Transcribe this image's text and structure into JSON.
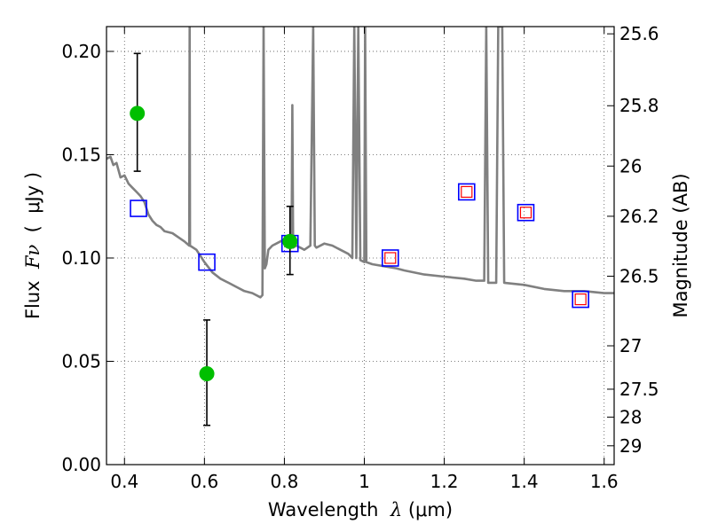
{
  "chart_data": {
    "type": "scatter",
    "xlabel": {
      "prefix": "Wavelength  ",
      "sym": "λ",
      "suffix": " (μm)"
    },
    "ylabel": {
      "prefix": "Flux  ",
      "sym": "Fν",
      "suffix": "  (  μJy )"
    },
    "y2label": "Magnitude (AB)",
    "xlim": [
      0.355,
      1.625
    ],
    "ylim": [
      0.0,
      0.212
    ],
    "grid": true,
    "x_ticks": [
      {
        "v": 0.4,
        "label": "0.4"
      },
      {
        "v": 0.6,
        "label": "0.6"
      },
      {
        "v": 0.8,
        "label": "0.8"
      },
      {
        "v": 1.0,
        "label": "1"
      },
      {
        "v": 1.2,
        "label": "1.2"
      },
      {
        "v": 1.4,
        "label": "1.4"
      },
      {
        "v": 1.6,
        "label": "1.6"
      }
    ],
    "y_ticks": [
      {
        "v": 0.0,
        "label": "0.00"
      },
      {
        "v": 0.05,
        "label": "0.05"
      },
      {
        "v": 0.1,
        "label": "0.10"
      },
      {
        "v": 0.15,
        "label": "0.15"
      },
      {
        "v": 0.2,
        "label": "0.20"
      }
    ],
    "y2_ticks": [
      {
        "flux": 0.2085,
        "label": "25.6"
      },
      {
        "flux": 0.1737,
        "label": "25.8"
      },
      {
        "flux": 0.1445,
        "label": "26"
      },
      {
        "flux": 0.1202,
        "label": "26.2"
      },
      {
        "flux": 0.0912,
        "label": "26.5"
      },
      {
        "flux": 0.0575,
        "label": "27"
      },
      {
        "flux": 0.0365,
        "label": "27.5"
      },
      {
        "flux": 0.023,
        "label": "28"
      },
      {
        "flux": 0.0091,
        "label": "29"
      }
    ],
    "colors": {
      "model": "#808080",
      "observed": "#00bf00",
      "model_box": "#0000ff",
      "model_box_inner": "#ff0000",
      "errorbar": "#000000",
      "grid": "#555555"
    },
    "model_sed": {
      "name": "model",
      "points": [
        [
          0.355,
          0.148
        ],
        [
          0.365,
          0.149
        ],
        [
          0.372,
          0.145
        ],
        [
          0.38,
          0.146
        ],
        [
          0.39,
          0.139
        ],
        [
          0.4,
          0.14
        ],
        [
          0.41,
          0.136
        ],
        [
          0.42,
          0.134
        ],
        [
          0.43,
          0.132
        ],
        [
          0.44,
          0.13
        ],
        [
          0.45,
          0.127
        ],
        [
          0.46,
          0.121
        ],
        [
          0.47,
          0.118
        ],
        [
          0.48,
          0.116
        ],
        [
          0.49,
          0.115
        ],
        [
          0.5,
          0.113
        ],
        [
          0.52,
          0.112
        ],
        [
          0.535,
          0.11
        ],
        [
          0.55,
          0.108
        ],
        [
          0.562,
          0.106
        ],
        [
          0.563,
          0.212
        ],
        [
          0.564,
          0.106
        ],
        [
          0.58,
          0.104
        ],
        [
          0.6,
          0.098
        ],
        [
          0.62,
          0.093
        ],
        [
          0.64,
          0.09
        ],
        [
          0.66,
          0.088
        ],
        [
          0.68,
          0.086
        ],
        [
          0.7,
          0.084
        ],
        [
          0.72,
          0.083
        ],
        [
          0.74,
          0.081
        ],
        [
          0.745,
          0.082
        ],
        [
          0.748,
          0.212
        ],
        [
          0.751,
          0.095
        ],
        [
          0.755,
          0.097
        ],
        [
          0.76,
          0.104
        ],
        [
          0.77,
          0.106
        ],
        [
          0.78,
          0.107
        ],
        [
          0.79,
          0.108
        ],
        [
          0.8,
          0.109
        ],
        [
          0.805,
          0.107
        ],
        [
          0.812,
          0.108
        ],
        [
          0.815,
          0.105
        ],
        [
          0.818,
          0.105
        ],
        [
          0.82,
          0.174
        ],
        [
          0.822,
          0.105
        ],
        [
          0.83,
          0.106
        ],
        [
          0.84,
          0.105
        ],
        [
          0.85,
          0.104
        ],
        [
          0.865,
          0.106
        ],
        [
          0.872,
          0.212
        ],
        [
          0.876,
          0.106
        ],
        [
          0.88,
          0.105
        ],
        [
          0.9,
          0.107
        ],
        [
          0.92,
          0.106
        ],
        [
          0.94,
          0.104
        ],
        [
          0.96,
          0.102
        ],
        [
          0.97,
          0.1
        ],
        [
          0.975,
          0.212
        ],
        [
          0.98,
          0.1
        ],
        [
          0.985,
          0.212
        ],
        [
          0.99,
          0.099
        ],
        [
          1.0,
          0.098
        ],
        [
          1.002,
          0.212
        ],
        [
          1.005,
          0.098
        ],
        [
          1.02,
          0.097
        ],
        [
          1.05,
          0.096
        ],
        [
          1.08,
          0.095
        ],
        [
          1.1,
          0.094
        ],
        [
          1.15,
          0.092
        ],
        [
          1.2,
          0.091
        ],
        [
          1.25,
          0.09
        ],
        [
          1.28,
          0.089
        ],
        [
          1.3,
          0.089
        ],
        [
          1.305,
          0.212
        ],
        [
          1.31,
          0.088
        ],
        [
          1.33,
          0.088
        ],
        [
          1.335,
          0.212
        ],
        [
          1.345,
          0.212
        ],
        [
          1.35,
          0.088
        ],
        [
          1.4,
          0.087
        ],
        [
          1.45,
          0.085
        ],
        [
          1.5,
          0.084
        ],
        [
          1.55,
          0.084
        ],
        [
          1.6,
          0.083
        ],
        [
          1.625,
          0.083
        ]
      ]
    },
    "observed": [
      {
        "x": 0.432,
        "y": 0.17,
        "yerr_low": 0.142,
        "yerr_high": 0.199
      },
      {
        "x": 0.606,
        "y": 0.044,
        "yerr_low": 0.019,
        "yerr_high": 0.07
      },
      {
        "x": 0.814,
        "y": 0.108,
        "yerr_low": 0.092,
        "yerr_high": 0.125
      }
    ],
    "model_boxes": [
      {
        "x": 0.435,
        "y": 0.124,
        "inner": false
      },
      {
        "x": 0.606,
        "y": 0.098,
        "inner": false
      },
      {
        "x": 0.814,
        "y": 0.107,
        "inner": false
      },
      {
        "x": 1.065,
        "y": 0.1,
        "inner": true
      },
      {
        "x": 1.256,
        "y": 0.132,
        "inner": true
      },
      {
        "x": 1.404,
        "y": 0.122,
        "inner": true
      },
      {
        "x": 1.541,
        "y": 0.08,
        "inner": true
      }
    ]
  }
}
